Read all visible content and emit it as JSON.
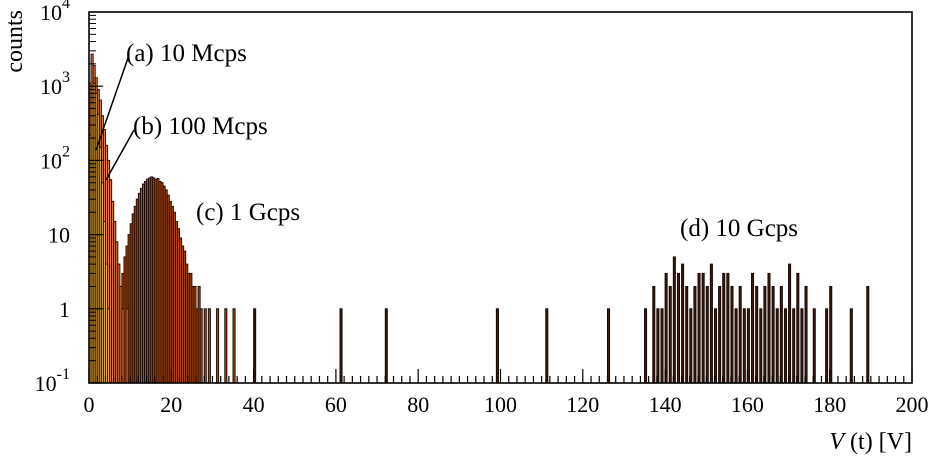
{
  "chart_data": {
    "type": "histogram",
    "ylabel": "counts",
    "xlabel_var": "V",
    "xlabel_arg": " (t) [V]",
    "xlim": [
      0,
      200
    ],
    "ylim_log10": [
      -1,
      4
    ],
    "y_scale": "log",
    "x_ticks": [
      "0",
      "20",
      "40",
      "60",
      "80",
      "100",
      "120",
      "140",
      "160",
      "180",
      "200"
    ],
    "y_ticks": [
      {
        "base": "10",
        "exp": "-1",
        "value": 0.1
      },
      {
        "base": "1",
        "exp": "",
        "value": 1
      },
      {
        "base": "10",
        "exp": "",
        "value": 10
      },
      {
        "base": "10",
        "exp": "2",
        "value": 100
      },
      {
        "base": "10",
        "exp": "3",
        "value": 1000
      },
      {
        "base": "10",
        "exp": "4",
        "value": 10000
      }
    ],
    "grid": false,
    "series": [
      {
        "label": "(a) 10 Mcps",
        "color": "#f2b830",
        "bins": [
          [
            0,
            0.5,
            220
          ],
          [
            0.5,
            1,
            600
          ],
          [
            1,
            1.5,
            1100
          ],
          [
            1.5,
            2,
            800
          ],
          [
            2,
            2.5,
            420
          ],
          [
            2.5,
            3,
            150
          ],
          [
            3,
            3.5,
            50
          ],
          [
            3.5,
            4,
            15
          ],
          [
            4,
            4.5,
            4
          ],
          [
            4.5,
            5,
            1
          ]
        ]
      },
      {
        "label": "(b) 100 Mcps",
        "color": "#f77f40",
        "bins": [
          [
            0,
            0.5,
            1100
          ],
          [
            0.5,
            1,
            2700
          ],
          [
            1,
            1.5,
            1900
          ],
          [
            1.5,
            2,
            1300
          ],
          [
            2,
            2.5,
            900
          ],
          [
            2.5,
            3,
            650
          ],
          [
            3,
            3.5,
            400
          ],
          [
            3.5,
            4,
            260
          ],
          [
            4,
            4.5,
            160
          ],
          [
            4.5,
            5,
            100
          ],
          [
            5,
            5.5,
            55
          ],
          [
            5.5,
            6,
            28
          ],
          [
            6,
            6.5,
            15
          ],
          [
            6.5,
            7,
            8
          ],
          [
            7,
            7.5,
            4
          ],
          [
            7.5,
            8,
            2
          ],
          [
            8,
            8.5,
            1
          ],
          [
            9,
            9.5,
            1
          ]
        ]
      },
      {
        "label": "(c) 1 Gcps",
        "color": "#c04a0c",
        "bins": [
          [
            7,
            7.5,
            1
          ],
          [
            7.5,
            8,
            2
          ],
          [
            8,
            8.5,
            3
          ],
          [
            8.5,
            9,
            5
          ],
          [
            9,
            9.5,
            7
          ],
          [
            9.5,
            10,
            10
          ],
          [
            10,
            10.5,
            14
          ],
          [
            10.5,
            11,
            19
          ],
          [
            11,
            11.5,
            24
          ],
          [
            11.5,
            12,
            30
          ],
          [
            12,
            12.5,
            36
          ],
          [
            12.5,
            13,
            42
          ],
          [
            13,
            13.5,
            48
          ],
          [
            13.5,
            14,
            52
          ],
          [
            14,
            14.5,
            56
          ],
          [
            14.5,
            15,
            58
          ],
          [
            15,
            15.5,
            60
          ],
          [
            15.5,
            16,
            58
          ],
          [
            16,
            16.5,
            55
          ],
          [
            16.5,
            17,
            57
          ],
          [
            17,
            17.5,
            52
          ],
          [
            17.5,
            18,
            50
          ],
          [
            18,
            18.5,
            45
          ],
          [
            18.5,
            19,
            40
          ],
          [
            19,
            19.5,
            34
          ],
          [
            19.5,
            20,
            28
          ],
          [
            20,
            20.5,
            24
          ],
          [
            20.5,
            21,
            20
          ],
          [
            21,
            21.5,
            15
          ],
          [
            21.5,
            22,
            12
          ],
          [
            22,
            22.5,
            9
          ],
          [
            22.5,
            23,
            7
          ],
          [
            23,
            23.5,
            6
          ],
          [
            23.5,
            24,
            4
          ],
          [
            24,
            24.5,
            3
          ],
          [
            24.5,
            25,
            3
          ],
          [
            25,
            25.5,
            2
          ],
          [
            25.5,
            26,
            2
          ],
          [
            26,
            26.5,
            1
          ],
          [
            26.5,
            27,
            2
          ],
          [
            27,
            27.5,
            1
          ],
          [
            28,
            28.5,
            1
          ],
          [
            29,
            29.5,
            1
          ],
          [
            31,
            31.5,
            1
          ],
          [
            33,
            33.5,
            1
          ],
          [
            35,
            35.5,
            1
          ]
        ]
      },
      {
        "label": "(d) 10 Gcps",
        "color": "#3a1a0c",
        "bins": [
          [
            40,
            40.5,
            1
          ],
          [
            61,
            61.5,
            1
          ],
          [
            72,
            72.5,
            1
          ],
          [
            99,
            99.5,
            1
          ],
          [
            111,
            111.5,
            1
          ],
          [
            126,
            126.5,
            1
          ],
          [
            135,
            135.5,
            1
          ],
          [
            137,
            137.5,
            2
          ],
          [
            138,
            138.5,
            1
          ],
          [
            139,
            139.5,
            1
          ],
          [
            140,
            140.5,
            3
          ],
          [
            141,
            141.5,
            2
          ],
          [
            142,
            142.5,
            5
          ],
          [
            143,
            143.5,
            3
          ],
          [
            144,
            144.5,
            4
          ],
          [
            145,
            145.5,
            2
          ],
          [
            146,
            146.5,
            1
          ],
          [
            147,
            147.5,
            2
          ],
          [
            148,
            148.5,
            3
          ],
          [
            149,
            149.5,
            3
          ],
          [
            150,
            150.5,
            2
          ],
          [
            151,
            151.5,
            4
          ],
          [
            152,
            152.5,
            1
          ],
          [
            153,
            153.5,
            2
          ],
          [
            154,
            154.5,
            3
          ],
          [
            155,
            155.5,
            3
          ],
          [
            156,
            156.5,
            2
          ],
          [
            157,
            157.5,
            1
          ],
          [
            158,
            158.5,
            2
          ],
          [
            159,
            159.5,
            1
          ],
          [
            160,
            160.5,
            1
          ],
          [
            161,
            161.5,
            3
          ],
          [
            162,
            162.5,
            2
          ],
          [
            163,
            163.5,
            1
          ],
          [
            164,
            164.5,
            2
          ],
          [
            165,
            165.5,
            3
          ],
          [
            166,
            166.5,
            2
          ],
          [
            167,
            167.5,
            1
          ],
          [
            168,
            168.5,
            2
          ],
          [
            169,
            169.5,
            1
          ],
          [
            170,
            170.5,
            4
          ],
          [
            171,
            171.5,
            1
          ],
          [
            172,
            172.5,
            3
          ],
          [
            173,
            173.5,
            1
          ],
          [
            174,
            174.5,
            2
          ],
          [
            176,
            176.5,
            1
          ],
          [
            179,
            179.5,
            1
          ],
          [
            180,
            180.5,
            2
          ],
          [
            185,
            185.5,
            1
          ],
          [
            189,
            189.5,
            2
          ]
        ]
      }
    ],
    "annotations": [
      {
        "text": "(a) 10 Mcps",
        "series": 0
      },
      {
        "text": "(b) 100 Mcps",
        "series": 1
      },
      {
        "text": "(c) 1 Gcps",
        "series": 2
      },
      {
        "text": "(d) 10 Gcps",
        "series": 3
      }
    ]
  }
}
